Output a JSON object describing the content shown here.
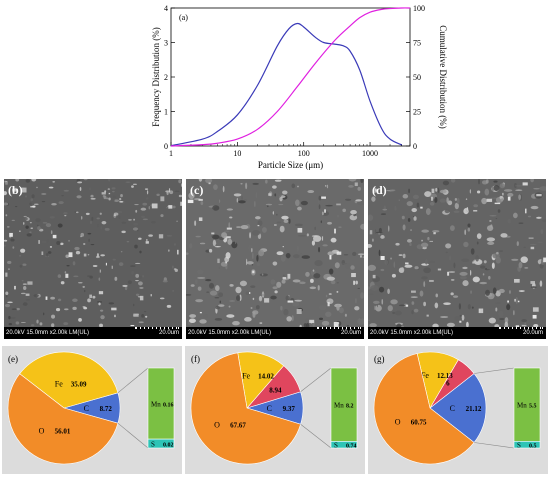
{
  "chart_data": [
    {
      "panel": "(a)",
      "type": "line",
      "xlabel": "Particle Size (μm)",
      "ylabel": "Frequency Distribution (%)",
      "y2label": "Cumulative Distribution (%)",
      "xscale": "log",
      "xlim": [
        1,
        4000
      ],
      "ylim": [
        0,
        4
      ],
      "y2lim": [
        0,
        100
      ],
      "xticks": [
        "1",
        "10",
        "100",
        "1000"
      ],
      "yticks": [
        "0",
        "1",
        "2",
        "3",
        "4"
      ],
      "y2ticks": [
        "0",
        "25",
        "50",
        "75",
        "100"
      ],
      "series": [
        {
          "axis": "left",
          "color": "#3a3ab8",
          "x": [
            1,
            3,
            5,
            10,
            20,
            40,
            60,
            80,
            100,
            150,
            200,
            300,
            400,
            500,
            700,
            1000,
            1500,
            2000,
            3000
          ],
          "y": [
            0.01,
            0.2,
            0.42,
            0.9,
            1.75,
            2.9,
            3.4,
            3.55,
            3.45,
            3.15,
            3.0,
            2.95,
            2.9,
            2.75,
            2.2,
            1.3,
            0.5,
            0.2,
            0.03
          ]
        },
        {
          "axis": "right",
          "color": "#e020e0",
          "x": [
            1,
            3,
            5,
            10,
            20,
            40,
            80,
            150,
            300,
            500,
            700,
            1000,
            1500,
            2000,
            3000,
            4000
          ],
          "y": [
            0,
            1,
            2,
            5,
            12,
            25,
            43,
            60,
            77,
            87,
            93,
            97,
            99,
            99.6,
            100,
            100
          ]
        }
      ]
    },
    {
      "panel": "(e)",
      "type": "pie",
      "slices": [
        {
          "label": "O",
          "value": 56.01,
          "color": "#f28c28"
        },
        {
          "label": "Fe",
          "value": 35.09,
          "color": "#f5c218"
        },
        {
          "label": "C",
          "value": 8.72,
          "color": "#4a70d0"
        }
      ],
      "bar": [
        {
          "label": "Mn",
          "value": 0.16,
          "color": "#7bc043"
        },
        {
          "label": "S",
          "value": 0.02,
          "color": "#2ec4b6"
        }
      ]
    },
    {
      "panel": "(f)",
      "type": "pie",
      "slices": [
        {
          "label": "O",
          "value": 67.67,
          "color": "#f28c28"
        },
        {
          "label": "Fe",
          "value": 14.02,
          "color": "#f5c218"
        },
        {
          "label": "",
          "value": 8.94,
          "color": "#e0465e"
        },
        {
          "label": "C",
          "value": 9.37,
          "color": "#4a70d0"
        }
      ],
      "bar": [
        {
          "label": "Mn",
          "value": 8.2,
          "color": "#7bc043"
        },
        {
          "label": "S",
          "value": 0.74,
          "color": "#2ec4b6"
        }
      ]
    },
    {
      "panel": "(g)",
      "type": "pie",
      "slices": [
        {
          "label": "O",
          "value": 60.75,
          "color": "#f28c28"
        },
        {
          "label": "Fe",
          "value": 12.13,
          "color": "#f5c218"
        },
        {
          "label": "",
          "value": 6.0,
          "color": "#e0465e"
        },
        {
          "label": "C",
          "value": 21.12,
          "color": "#4a70d0"
        }
      ],
      "bar": [
        {
          "label": "Mn",
          "value": 5.5,
          "color": "#7bc043"
        },
        {
          "label": "S",
          "value": 0.5,
          "color": "#2ec4b6"
        }
      ]
    }
  ],
  "sem": [
    {
      "label": "(b)",
      "info": "20.0kV 15.0mm x2.00k LM(UL)",
      "scale": "20.0um"
    },
    {
      "label": "(c)",
      "info": "20.0kV 15.0mm x2.00k LM(UL)",
      "scale": "20.0um"
    },
    {
      "label": "(d)",
      "info": "20.0kV 15.0mm x2.00k LM(UL)",
      "scale": "20.0um"
    }
  ]
}
